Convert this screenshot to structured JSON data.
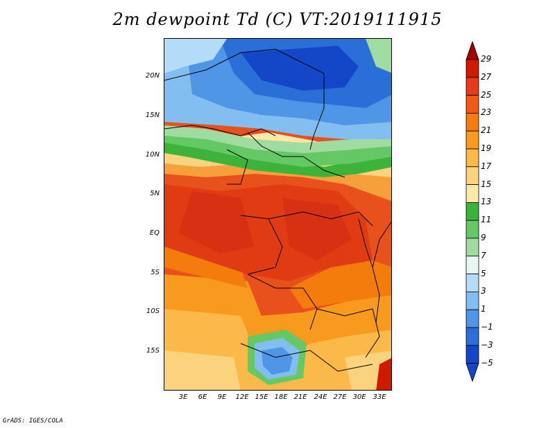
{
  "title": "2m dewpoint Td (C) VT:2019111915",
  "credit": "GrADS: IGES/COLA",
  "lat_labels": [
    "20N",
    "15N",
    "10N",
    "5N",
    "EQ",
    "5S",
    "10S",
    "15S"
  ],
  "lon_labels": [
    "3E",
    "6E",
    "9E",
    "12E",
    "15E",
    "18E",
    "21E",
    "24E",
    "27E",
    "30E",
    "33E"
  ],
  "colorbar": {
    "levels": [
      "29",
      "27",
      "25",
      "23",
      "21",
      "19",
      "17",
      "15",
      "13",
      "11",
      "9",
      "7",
      "5",
      "3",
      "1",
      "−1",
      "−3",
      "−5"
    ],
    "colors": [
      "#a50000",
      "#d01a00",
      "#e8391a",
      "#f05a14",
      "#f47c0c",
      "#f89a1e",
      "#fbb94a",
      "#fbd27e",
      "#fde8a8",
      "#3cb43c",
      "#64c864",
      "#a0dca0",
      "#e8f8f0",
      "#b4dcf8",
      "#82bef0",
      "#5096e6",
      "#2a6ed8",
      "#1446c8"
    ]
  }
}
